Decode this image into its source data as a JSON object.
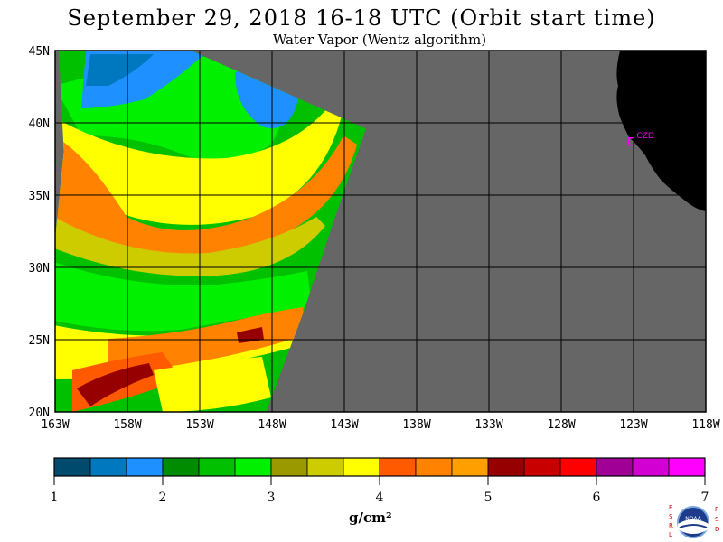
{
  "header": {
    "title": "September 29, 2018  16-18 UTC  (Orbit start time)",
    "subtitle": "Water Vapor (Wentz algorithm)"
  },
  "map": {
    "lat_labels": [
      "45N",
      "40N",
      "35N",
      "30N",
      "25N",
      "20N"
    ],
    "lat_values": [
      45,
      40,
      35,
      30,
      25,
      20
    ],
    "lon_labels": [
      "163W",
      "158W",
      "153W",
      "148W",
      "143W",
      "138W",
      "133W",
      "128W",
      "123W",
      "118W"
    ],
    "lon_values": [
      -163,
      -158,
      -153,
      -148,
      -143,
      -138,
      -133,
      -128,
      -123,
      -118
    ],
    "extent": {
      "lon_min": -163,
      "lon_max": -118,
      "lat_min": 20,
      "lat_max": 45
    },
    "no_data_color": "#666666",
    "land_color": "#000000",
    "station_label": "CZD",
    "station_color": "#ff00ff"
  },
  "colorbar": {
    "ticks": [
      "1",
      "2",
      "3",
      "4",
      "5",
      "6",
      "7"
    ],
    "colors": [
      "#004a6e",
      "#0078c0",
      "#1e90ff",
      "#008c00",
      "#00c000",
      "#00f000",
      "#9a9a00",
      "#cccc00",
      "#ffff00",
      "#ff5a00",
      "#ff8200",
      "#ffa000",
      "#960000",
      "#c80000",
      "#ff0000",
      "#a00096",
      "#d200d2",
      "#ff00ff"
    ],
    "units_label": "g/cm²",
    "range": [
      1,
      7
    ]
  },
  "logo": {
    "left_text": "ESRL",
    "right_text": "PSD",
    "center_text": "NOAA"
  }
}
